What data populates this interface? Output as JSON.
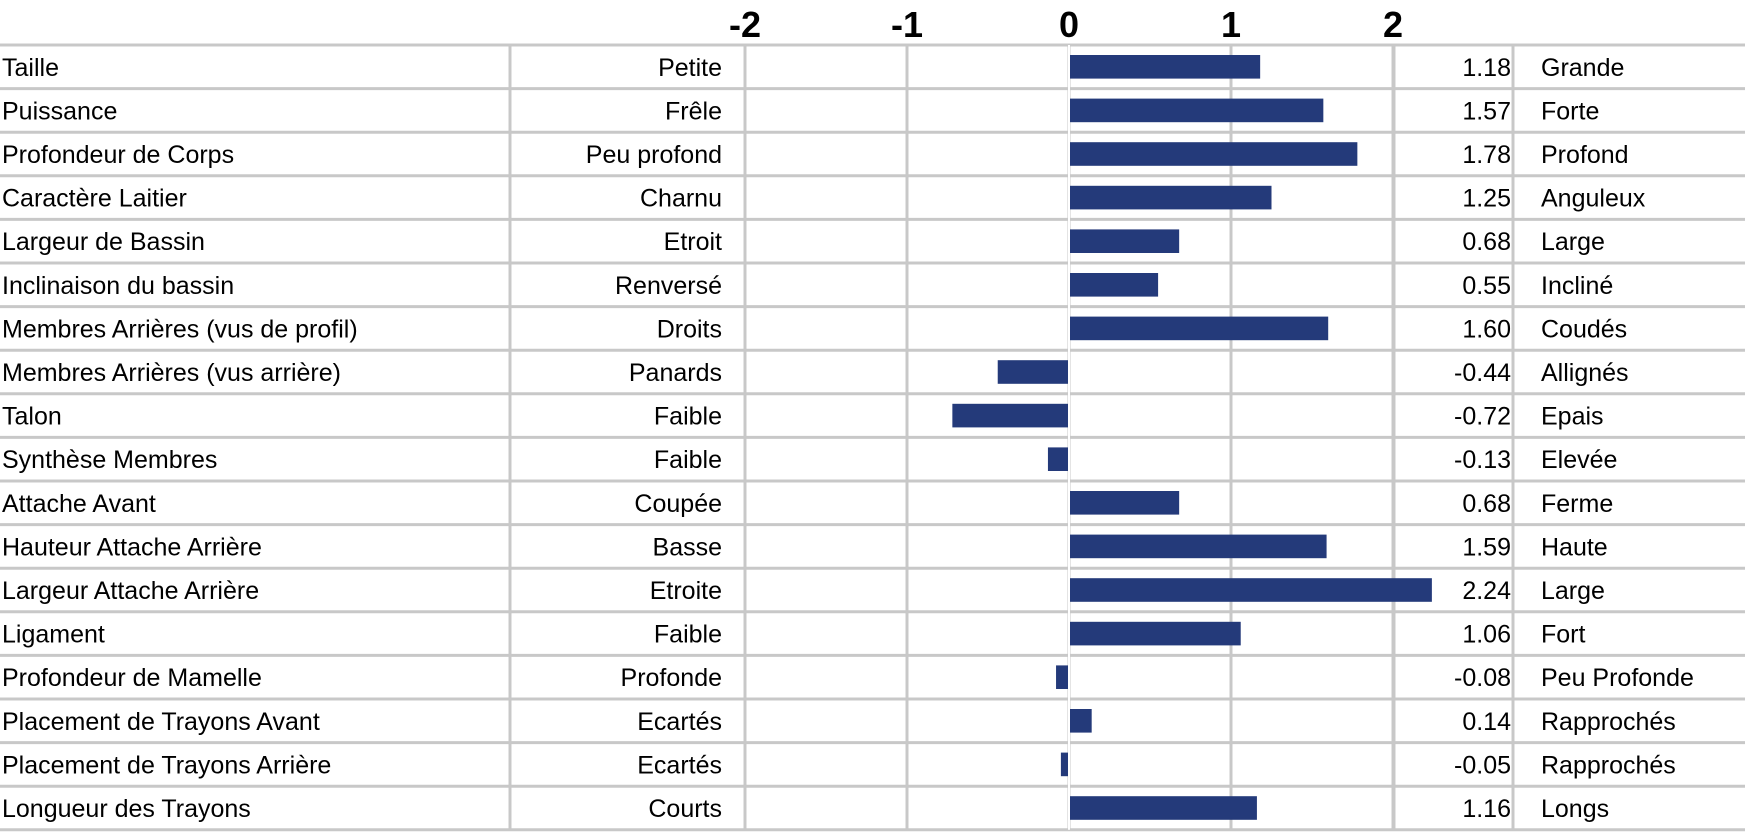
{
  "chart_data": {
    "type": "bar",
    "orientation": "horizontal",
    "bar_color": "#243a7a",
    "grid_color": "#c8c8c8",
    "xlim": [
      -2,
      2.24
    ],
    "x_ticks": [
      -2,
      -1,
      0,
      1,
      2
    ],
    "x_tick_labels": [
      "-2",
      "-1",
      "0",
      "1",
      "2"
    ],
    "grid": true,
    "rows": [
      {
        "trait": "Taille",
        "low": "Petite",
        "value": 1.18,
        "value_label": "1.18",
        "high": "Grande"
      },
      {
        "trait": "Puissance",
        "low": "Frêle",
        "value": 1.57,
        "value_label": "1.57",
        "high": "Forte"
      },
      {
        "trait": "Profondeur de Corps",
        "low": "Peu profond",
        "value": 1.78,
        "value_label": "1.78",
        "high": "Profond"
      },
      {
        "trait": "Caractère Laitier",
        "low": "Charnu",
        "value": 1.25,
        "value_label": "1.25",
        "high": "Anguleux"
      },
      {
        "trait": "Largeur de Bassin",
        "low": "Etroit",
        "value": 0.68,
        "value_label": "0.68",
        "high": "Large"
      },
      {
        "trait": "Inclinaison du bassin",
        "low": "Renversé",
        "value": 0.55,
        "value_label": "0.55",
        "high": "Incliné"
      },
      {
        "trait": "Membres Arrières (vus de profil)",
        "low": "Droits",
        "value": 1.6,
        "value_label": "1.60",
        "high": "Coudés"
      },
      {
        "trait": "Membres Arrières (vus arrière)",
        "low": "Panards",
        "value": -0.44,
        "value_label": "-0.44",
        "high": "Allignés"
      },
      {
        "trait": "Talon",
        "low": "Faible",
        "value": -0.72,
        "value_label": "-0.72",
        "high": "Epais"
      },
      {
        "trait": "Synthèse Membres",
        "low": "Faible",
        "value": -0.13,
        "value_label": "-0.13",
        "high": "Elevée"
      },
      {
        "trait": "Attache Avant",
        "low": "Coupée",
        "value": 0.68,
        "value_label": "0.68",
        "high": "Ferme"
      },
      {
        "trait": "Hauteur Attache Arrière",
        "low": "Basse",
        "value": 1.59,
        "value_label": "1.59",
        "high": "Haute"
      },
      {
        "trait": "Largeur Attache Arrière",
        "low": "Etroite",
        "value": 2.24,
        "value_label": "2.24",
        "high": "Large"
      },
      {
        "trait": "Ligament",
        "low": "Faible",
        "value": 1.06,
        "value_label": "1.06",
        "high": "Fort"
      },
      {
        "trait": "Profondeur de Mamelle",
        "low": "Profonde",
        "value": -0.08,
        "value_label": "-0.08",
        "high": "Peu Profonde"
      },
      {
        "trait": "Placement de Trayons Avant",
        "low": "Ecartés",
        "value": 0.14,
        "value_label": "0.14",
        "high": "Rapprochés"
      },
      {
        "trait": "Placement de Trayons Arrière",
        "low": "Ecartés",
        "value": -0.05,
        "value_label": "-0.05",
        "high": "Rapprochés"
      },
      {
        "trait": "Longueur des Trayons",
        "low": "Courts",
        "value": 1.16,
        "value_label": "1.16",
        "high": "Longs"
      }
    ]
  }
}
